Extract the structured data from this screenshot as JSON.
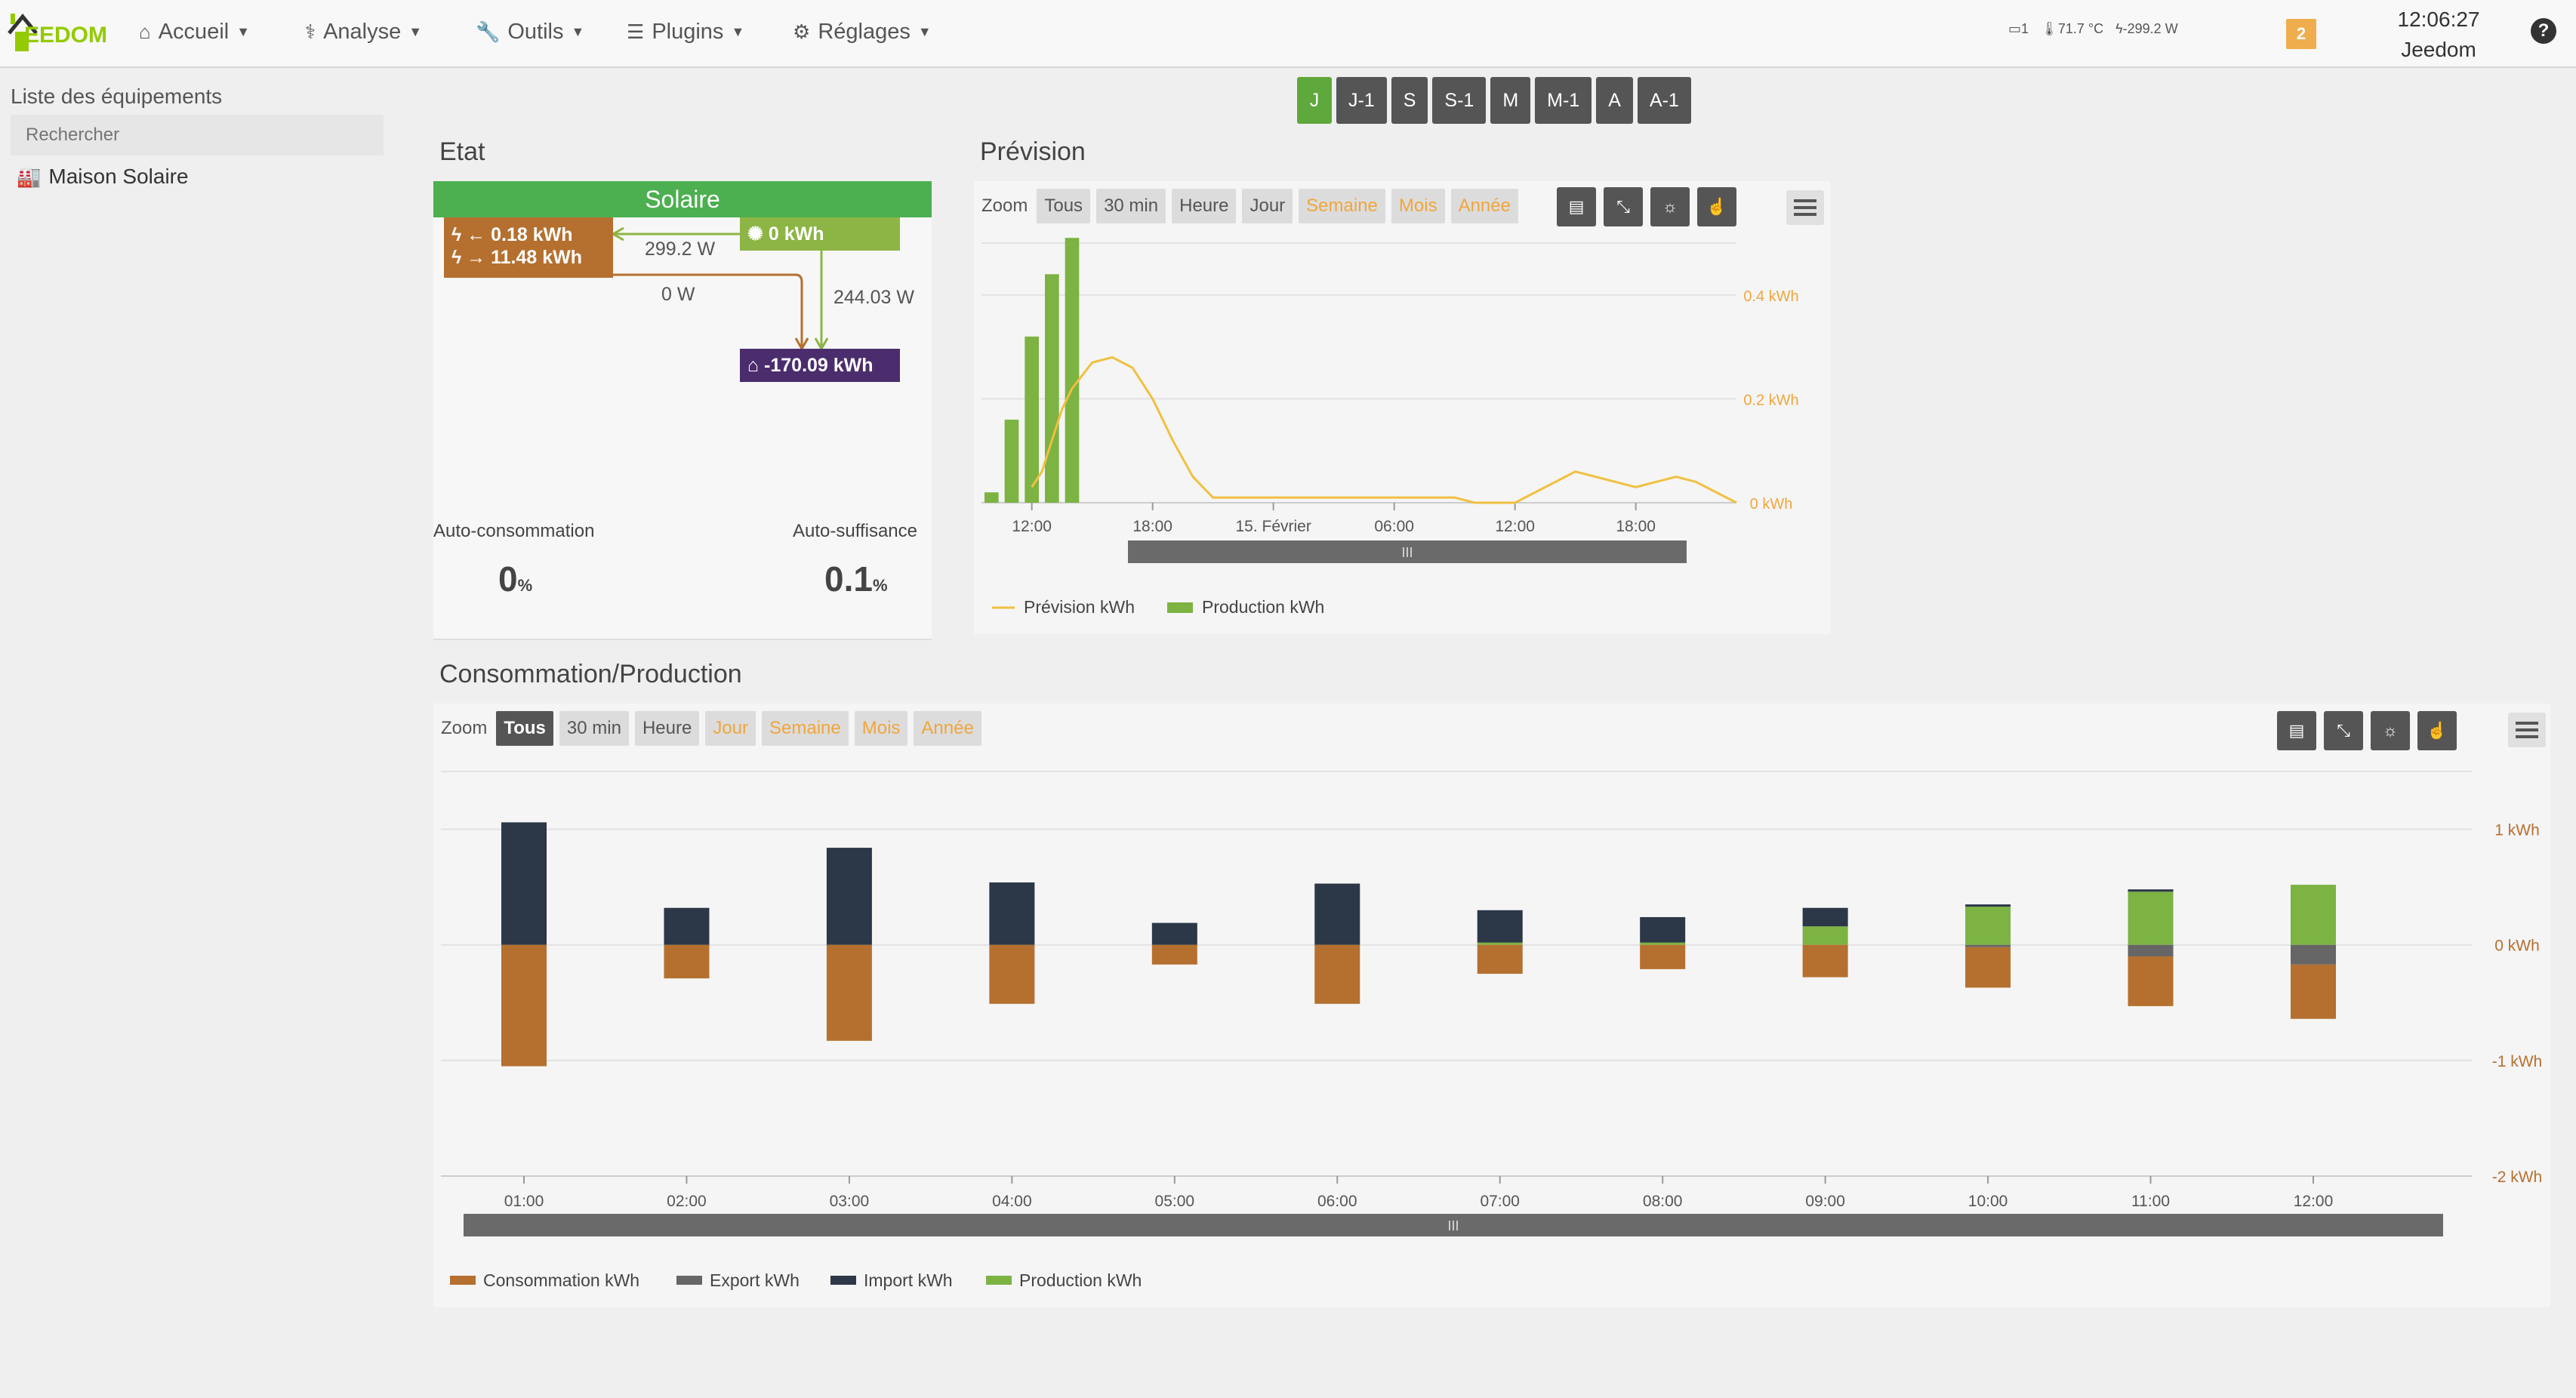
{
  "navbar": {
    "logo_text": "EEDOM",
    "menu": [
      {
        "label": "Accueil",
        "icon": "home-icon"
      },
      {
        "label": "Analyse",
        "icon": "stethoscope-icon"
      },
      {
        "label": "Outils",
        "icon": "wrench-icon"
      },
      {
        "label": "Plugins",
        "icon": "list-icon"
      },
      {
        "label": "Réglages",
        "icon": "gear-icon"
      }
    ],
    "status": {
      "door": "1",
      "temperature": "71.7 °C",
      "power": "-299.2 W"
    },
    "messages_count": "2",
    "clock": {
      "time": "12:06:27",
      "name": "Jeedom"
    }
  },
  "sidebar": {
    "title": "Liste des équipements",
    "search_placeholder": "Rechercher",
    "items": [
      {
        "label": "Maison Solaire",
        "icon": "building-icon"
      }
    ]
  },
  "periods": {
    "buttons": [
      "J",
      "J-1",
      "S",
      "S-1",
      "M",
      "M-1",
      "A",
      "A-1"
    ],
    "active": "J"
  },
  "etat": {
    "title": "Etat",
    "header": "Solaire",
    "grid_import": "0.18 kWh",
    "grid_export": "11.48 kWh",
    "solar_value": "0 kWh",
    "home_value": "-170.09 kWh",
    "flow_solar_grid": "299.2 W",
    "flow_grid_home": "0 W",
    "flow_solar_home": "244.03 W",
    "autoconso_label": "Auto-consommation",
    "autoconso_value": "0",
    "autosuff_label": "Auto-suffisance",
    "autosuff_value": "0.1",
    "unit_percent": "%",
    "colors": {
      "header": "#4caf50",
      "grid": "#b5702f",
      "solar": "#8cb545",
      "home": "#4b2d6d"
    }
  },
  "prevision": {
    "title": "Prévision",
    "zoom_label": "Zoom",
    "zoom_buttons": [
      "Tous",
      "30 min",
      "Heure",
      "Jour",
      "Semaine",
      "Mois",
      "Année"
    ],
    "zoom_disabled": [
      "Semaine",
      "Mois",
      "Année"
    ],
    "tool_icons": [
      "table-icon",
      "resize-icon",
      "sun-icon",
      "hand-pointer-icon"
    ],
    "menu_icon": "hamburger-menu-icon",
    "navigator_handle": "III"
  },
  "conso": {
    "title": "Consommation/Production",
    "zoom_label": "Zoom",
    "zoom_buttons": [
      "Tous",
      "30 min",
      "Heure",
      "Jour",
      "Semaine",
      "Mois",
      "Année"
    ],
    "zoom_active": "Tous",
    "zoom_disabled": [
      "Jour",
      "Semaine",
      "Mois",
      "Année"
    ],
    "tool_icons": [
      "table-icon",
      "resize-icon",
      "sun-icon",
      "hand-pointer-icon"
    ],
    "menu_icon": "hamburger-menu-icon",
    "navigator_handle": "III"
  },
  "chart_data": [
    {
      "type": "bar",
      "name": "prevision",
      "x_ticks": [
        "12:00",
        "18:00",
        "15. Février",
        "06:00",
        "12:00",
        "18:00"
      ],
      "y_ticks": [
        "0 kWh",
        "0.2 kWh",
        "0.4 kWh"
      ],
      "ylim": [
        0,
        0.5
      ],
      "series": [
        {
          "name": "Prévision kWh",
          "type": "line",
          "color": "#f0c040",
          "x": [
            0,
            0.5,
            1,
            1.5,
            2,
            3,
            4,
            5,
            6,
            7,
            8,
            9,
            10,
            11,
            12,
            13,
            14,
            15,
            16,
            17,
            18,
            19,
            20,
            21,
            22,
            23,
            24,
            25,
            26,
            27,
            28,
            29,
            30,
            31,
            32,
            33,
            34,
            35
          ],
          "values": [
            0.03,
            0.06,
            0.12,
            0.18,
            0.22,
            0.27,
            0.28,
            0.26,
            0.2,
            0.12,
            0.05,
            0.01,
            0.01,
            0.01,
            0.01,
            0.01,
            0.01,
            0.01,
            0.01,
            0.01,
            0.01,
            0.01,
            0.01,
            0.01,
            0.0,
            0.0,
            0.0,
            0.02,
            0.04,
            0.06,
            0.05,
            0.04,
            0.03,
            0.04,
            0.05,
            0.04,
            0.02,
            0.0
          ]
        },
        {
          "name": "Production kWh",
          "type": "bar",
          "color": "#7cb342",
          "x": [
            -2,
            -1,
            0,
            1,
            2
          ],
          "values": [
            0.02,
            0.16,
            0.32,
            0.44,
            0.51
          ]
        }
      ],
      "x_range": [
        -2.5,
        35
      ],
      "legend": "bottom-left"
    },
    {
      "type": "bar",
      "name": "conso_production",
      "categories": [
        "01:00",
        "02:00",
        "03:00",
        "04:00",
        "05:00",
        "06:00",
        "07:00",
        "08:00",
        "09:00",
        "10:00",
        "11:00",
        "12:00"
      ],
      "y_ticks": [
        "-2 kWh",
        "-1 kWh",
        "0 kWh",
        "1 kWh"
      ],
      "ylim": [
        -2,
        1.5
      ],
      "series": [
        {
          "name": "Consommation kWh",
          "color": "#b5702f",
          "values": [
            -1.05,
            -0.29,
            -0.83,
            -0.51,
            -0.17,
            -0.51,
            -0.25,
            -0.21,
            -0.28,
            -0.35,
            -0.43,
            -0.47
          ]
        },
        {
          "name": "Export kWh",
          "color": "#666666",
          "values": [
            0,
            0,
            0,
            0,
            0,
            0,
            0,
            0,
            0,
            -0.02,
            -0.1,
            -0.17
          ]
        },
        {
          "name": "Import kWh",
          "color": "#2c3748",
          "values": [
            1.06,
            0.32,
            0.84,
            0.54,
            0.19,
            0.53,
            0.28,
            0.22,
            0.16,
            0.02,
            0.02,
            0
          ]
        },
        {
          "name": "Production kWh",
          "color": "#7cb342",
          "values": [
            0,
            0,
            0,
            0,
            0,
            0,
            0.02,
            0.02,
            0.16,
            0.33,
            0.46,
            0.52
          ]
        }
      ],
      "legend": "bottom-left"
    }
  ]
}
